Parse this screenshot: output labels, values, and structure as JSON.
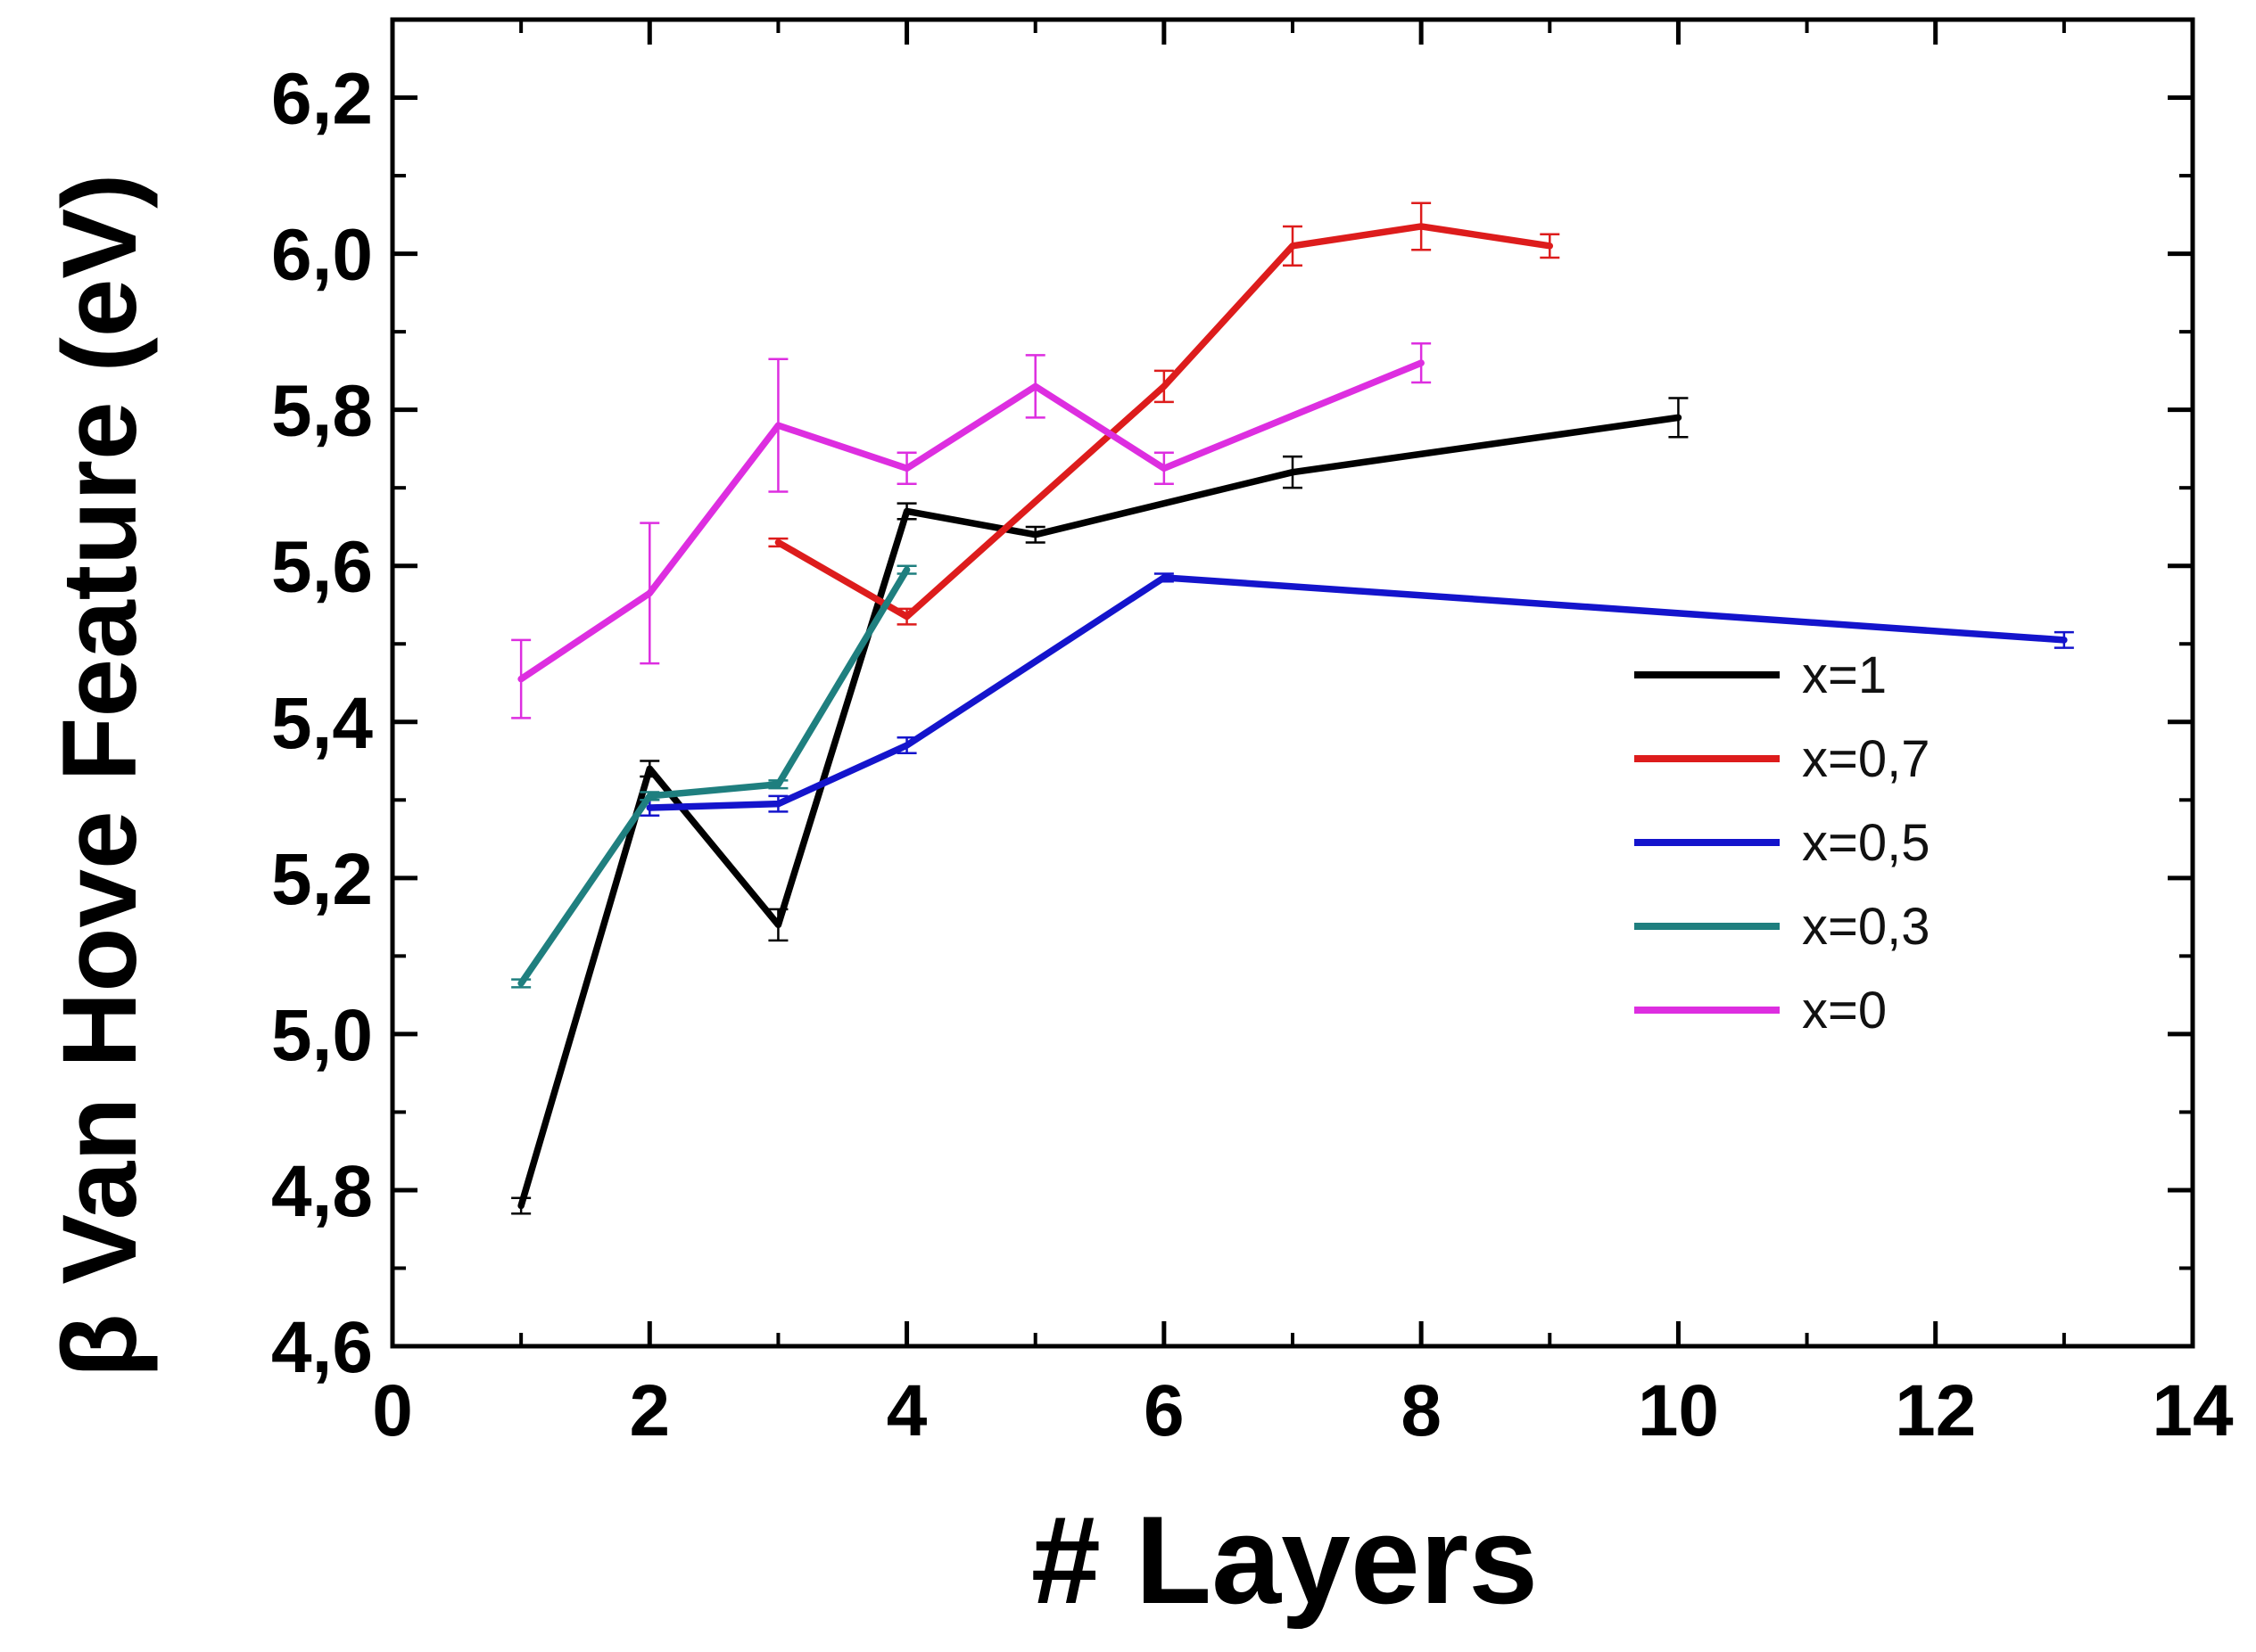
{
  "chart_data": {
    "type": "line",
    "xlabel": "# Layers",
    "ylabel": "β Van Hove Feature (eV)",
    "xlim": [
      0,
      14
    ],
    "ylim": [
      4.6,
      6.3
    ],
    "xticks": [
      0,
      2,
      4,
      6,
      8,
      10,
      12,
      14
    ],
    "xtick_labels": [
      "0",
      "2",
      "4",
      "6",
      "8",
      "10",
      "12",
      "14"
    ],
    "yticks": [
      4.6,
      4.8,
      5.0,
      5.2,
      5.4,
      5.6,
      5.8,
      6.0,
      6.2
    ],
    "ytick_labels": [
      "4,6",
      "4,8",
      "5,0",
      "5,2",
      "5,4",
      "5,6",
      "5,8",
      "6,0",
      "6,2"
    ],
    "grid": false,
    "legend": "center-right",
    "series": [
      {
        "name": "x=1",
        "color": "#000000",
        "x": [
          1,
          2,
          3,
          4,
          5,
          7,
          10
        ],
        "y": [
          4.78,
          5.34,
          5.14,
          5.67,
          5.64,
          5.72,
          5.79
        ],
        "err": [
          0.01,
          0.01,
          0.02,
          0.01,
          0.01,
          0.02,
          0.025
        ]
      },
      {
        "name": "x=0,7",
        "color": "#dd1c1c",
        "x": [
          3,
          4,
          6,
          7,
          8,
          9
        ],
        "y": [
          5.63,
          5.535,
          5.83,
          6.01,
          6.035,
          6.01
        ],
        "err": [
          0.005,
          0.01,
          0.02,
          0.025,
          0.03,
          0.015
        ]
      },
      {
        "name": "x=0,5",
        "color": "#1414cc",
        "x": [
          2,
          3,
          4,
          6,
          13
        ],
        "y": [
          5.29,
          5.295,
          5.37,
          5.585,
          5.505
        ],
        "err": [
          0.01,
          0.01,
          0.01,
          0.005,
          0.01
        ]
      },
      {
        "name": "x=0,3",
        "color": "#1f7f7f",
        "x": [
          1,
          2,
          3,
          4
        ],
        "y": [
          5.065,
          5.305,
          5.32,
          5.595
        ],
        "err": [
          0.005,
          0.005,
          0.005,
          0.005
        ]
      },
      {
        "name": "x=0",
        "color": "#dd2ee0",
        "x": [
          1,
          2,
          3,
          4,
          5,
          6,
          8
        ],
        "y": [
          5.455,
          5.565,
          5.78,
          5.725,
          5.83,
          5.725,
          5.86
        ],
        "err": [
          0.05,
          0.09,
          0.085,
          0.02,
          0.04,
          0.02,
          0.025
        ]
      }
    ]
  }
}
